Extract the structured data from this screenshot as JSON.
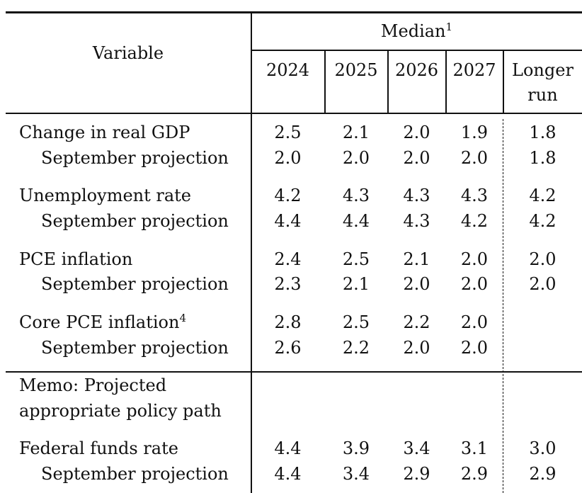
{
  "header": {
    "variable_label": "Variable",
    "median_label": "Median",
    "median_footnote": "1",
    "years": [
      "2024",
      "2025",
      "2026",
      "2027"
    ],
    "longer_run_line1": "Longer",
    "longer_run_line2": "run"
  },
  "rows": {
    "gdp": {
      "label": "Change in real GDP",
      "values": [
        "2.5",
        "2.1",
        "2.0",
        "1.9",
        "1.8"
      ]
    },
    "gdp_sep": {
      "label": "September projection",
      "values": [
        "2.0",
        "2.0",
        "2.0",
        "2.0",
        "1.8"
      ]
    },
    "unemp": {
      "label": "Unemployment rate",
      "values": [
        "4.2",
        "4.3",
        "4.3",
        "4.3",
        "4.2"
      ]
    },
    "unemp_sep": {
      "label": "September projection",
      "values": [
        "4.4",
        "4.4",
        "4.3",
        "4.2",
        "4.2"
      ]
    },
    "pce": {
      "label": "PCE inflation",
      "values": [
        "2.4",
        "2.5",
        "2.1",
        "2.0",
        "2.0"
      ]
    },
    "pce_sep": {
      "label": "September projection",
      "values": [
        "2.3",
        "2.1",
        "2.0",
        "2.0",
        "2.0"
      ]
    },
    "core": {
      "label": "Core PCE inflation",
      "footnote": "4",
      "values": [
        "2.8",
        "2.5",
        "2.2",
        "2.0",
        ""
      ]
    },
    "core_sep": {
      "label": "September projection",
      "values": [
        "2.6",
        "2.2",
        "2.0",
        "2.0",
        ""
      ]
    },
    "memo": {
      "line1": "Memo: Projected",
      "line2": "appropriate policy path"
    },
    "ffr": {
      "label": "Federal funds rate",
      "values": [
        "4.4",
        "3.9",
        "3.4",
        "3.1",
        "3.0"
      ]
    },
    "ffr_sep": {
      "label": "September projection",
      "values": [
        "4.4",
        "3.4",
        "2.9",
        "2.9",
        "2.9"
      ]
    }
  }
}
